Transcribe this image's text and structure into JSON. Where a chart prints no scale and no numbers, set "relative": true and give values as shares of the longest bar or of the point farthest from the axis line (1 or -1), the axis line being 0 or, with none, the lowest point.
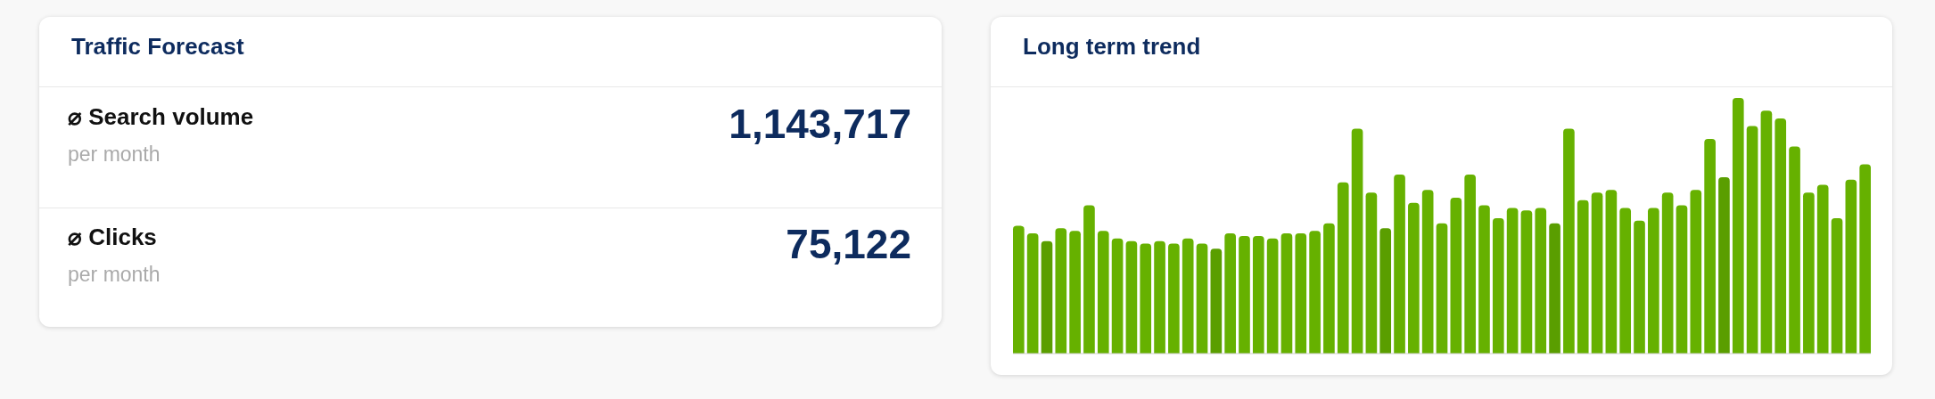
{
  "chart_data": [
    {
      "type": "other",
      "title": "Traffic Forecast",
      "categories": [
        "⌀ Search volume",
        "⌀ Clicks"
      ],
      "value_labels": [
        "1,143,717",
        "75,122"
      ],
      "annotations": [
        "per month",
        "per month"
      ]
    },
    {
      "type": "bar",
      "title": "Long term trend",
      "relative": true,
      "categories": [
        null,
        null,
        null,
        null,
        null,
        null,
        null,
        null,
        null,
        null,
        null,
        null,
        null,
        null,
        null,
        null,
        null,
        null,
        null,
        null,
        null,
        null,
        null,
        null,
        null,
        null,
        null,
        null,
        null,
        null,
        null,
        null,
        null,
        null,
        null,
        null,
        null,
        null,
        null,
        null,
        null,
        null,
        null,
        null,
        null,
        null,
        null,
        null,
        null,
        null,
        null,
        null,
        null,
        null,
        null,
        null,
        null,
        null,
        null,
        null,
        null
      ],
      "values": [
        0.5,
        0.47,
        0.44,
        0.49,
        0.48,
        0.58,
        0.48,
        0.45,
        0.44,
        0.43,
        0.44,
        0.43,
        0.45,
        0.43,
        0.41,
        0.47,
        0.46,
        0.46,
        0.45,
        0.47,
        0.47,
        0.48,
        0.51,
        0.67,
        0.88,
        0.63,
        0.49,
        0.7,
        0.59,
        0.64,
        0.51,
        0.61,
        0.7,
        0.58,
        0.53,
        0.57,
        0.56,
        0.57,
        0.51,
        0.88,
        0.6,
        0.63,
        0.64,
        0.57,
        0.52,
        0.57,
        0.63,
        0.58,
        0.64,
        0.84,
        0.69,
        1,
        0.89,
        0.95,
        0.92,
        0.81,
        0.63,
        0.66,
        0.53,
        0.68,
        0.74
      ],
      "colors": [
        "#66b100",
        "#66b100",
        "#5a9e00",
        "#66b100",
        "#66b100",
        "#66b100",
        "#66b100",
        "#66b100",
        "#66b100",
        "#66b100",
        "#66b100",
        "#66b100",
        "#66b100",
        "#66b100",
        "#5a9e00",
        "#66b100",
        "#66b100",
        "#66b100",
        "#66b100",
        "#66b100",
        "#66b100",
        "#66b100",
        "#66b100",
        "#66b100",
        "#66b100",
        "#66b100",
        "#5a9e00",
        "#66b100",
        "#66b100",
        "#66b100",
        "#66b100",
        "#66b100",
        "#66b100",
        "#66b100",
        "#66b100",
        "#66b100",
        "#66b100",
        "#66b100",
        "#5a9e00",
        "#66b100",
        "#66b100",
        "#66b100",
        "#66b100",
        "#66b100",
        "#66b100",
        "#66b100",
        "#66b100",
        "#66b100",
        "#66b100",
        "#66b100",
        "#5a9e00",
        "#66b100",
        "#66b100",
        "#66b100",
        "#66b100",
        "#66b100",
        "#66b100",
        "#66b100",
        "#66b100",
        "#66b100",
        "#66b100"
      ]
    }
  ]
}
